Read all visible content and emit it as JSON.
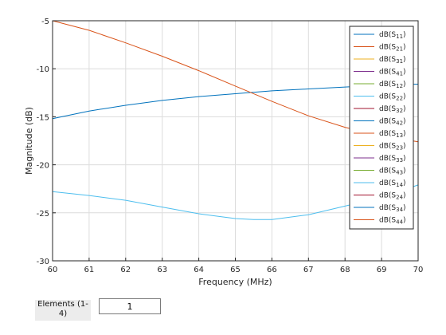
{
  "chart_data": {
    "type": "line",
    "xlabel": "Frequency (MHz)",
    "ylabel": "Magnitude (dB)",
    "xlim": [
      60,
      70
    ],
    "ylim": [
      -30,
      -5
    ],
    "xticks": [
      60,
      61,
      62,
      63,
      64,
      65,
      66,
      67,
      68,
      69,
      70
    ],
    "yticks": [
      -5,
      -10,
      -15,
      -20,
      -25,
      -30
    ],
    "grid": true,
    "legend_position": "top-right",
    "series": [
      {
        "name": "S11",
        "color": "#0072BD",
        "x": [
          60,
          61,
          62,
          63,
          64,
          65,
          66,
          67,
          68,
          69,
          70
        ],
        "y": [
          -15.2,
          -14.4,
          -13.8,
          -13.3,
          -12.9,
          -12.6,
          -12.3,
          -12.1,
          -11.9,
          -11.7,
          -11.6
        ]
      },
      {
        "name": "S21",
        "color": "#D95319",
        "x": [
          60,
          61,
          62,
          63,
          64,
          65,
          66,
          67,
          68,
          69,
          70
        ],
        "y": [
          -5.0,
          -6.0,
          -7.3,
          -8.7,
          -10.2,
          -11.8,
          -13.4,
          -14.9,
          -16.1,
          -17.0,
          -17.6
        ]
      },
      {
        "name": "S31",
        "color": "#EDB120",
        "x": [],
        "y": []
      },
      {
        "name": "S41",
        "color": "#7E2F8E",
        "x": [],
        "y": []
      },
      {
        "name": "S12",
        "color": "#77AC30",
        "x": [],
        "y": []
      },
      {
        "name": "S22",
        "color": "#4DBEEE",
        "x": [
          60,
          61,
          62,
          63,
          64,
          65,
          65.5,
          66,
          67,
          68,
          69,
          70
        ],
        "y": [
          -22.8,
          -23.2,
          -23.7,
          -24.4,
          -25.1,
          -25.6,
          -25.7,
          -25.7,
          -25.2,
          -24.3,
          -23.4,
          -22.1
        ]
      },
      {
        "name": "S32",
        "color": "#A2142F",
        "x": [],
        "y": []
      },
      {
        "name": "S42",
        "color": "#0072BD",
        "x": [],
        "y": []
      },
      {
        "name": "S13",
        "color": "#D95319",
        "x": [],
        "y": []
      },
      {
        "name": "S23",
        "color": "#EDB120",
        "x": [],
        "y": []
      },
      {
        "name": "S33",
        "color": "#7E2F8E",
        "x": [],
        "y": []
      },
      {
        "name": "S43",
        "color": "#77AC30",
        "x": [],
        "y": []
      },
      {
        "name": "S14",
        "color": "#4DBEEE",
        "x": [],
        "y": []
      },
      {
        "name": "S24",
        "color": "#A2142F",
        "x": [],
        "y": []
      },
      {
        "name": "S34",
        "color": "#0072BD",
        "x": [],
        "y": []
      },
      {
        "name": "S44",
        "color": "#D95319",
        "x": [],
        "y": []
      }
    ]
  },
  "controls": {
    "elements_label": "Elements (1-4)",
    "elements_value": "1"
  }
}
